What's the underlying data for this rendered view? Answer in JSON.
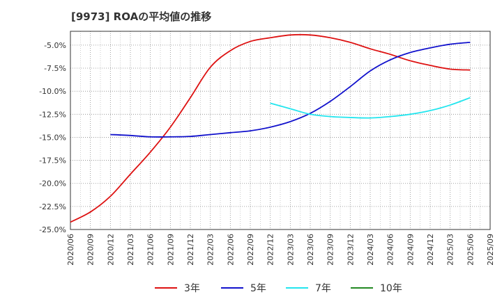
{
  "chart_data": {
    "type": "line",
    "title": "[9973]  ROAの平均値の推移",
    "xlabel": "",
    "ylabel": "",
    "ylim": [
      -25.0,
      -3.5
    ],
    "yticks": [
      -5.0,
      -7.5,
      -10.0,
      -12.5,
      -15.0,
      -17.5,
      -20.0,
      -22.5,
      -25.0
    ],
    "ytick_labels": [
      "-5.0%",
      "-7.5%",
      "-10.0%",
      "-12.5%",
      "-15.0%",
      "-17.5%",
      "-20.0%",
      "-22.5%",
      "-25.0%"
    ],
    "x_categories": [
      "2020/06",
      "2020/09",
      "2020/12",
      "2021/03",
      "2021/06",
      "2021/09",
      "2021/12",
      "2022/03",
      "2022/06",
      "2022/09",
      "2022/12",
      "2023/03",
      "2023/06",
      "2023/09",
      "2023/12",
      "2024/03",
      "2024/06",
      "2024/09",
      "2024/12",
      "2025/03",
      "2025/06",
      "2025/09"
    ],
    "grid": true,
    "legend_position": "bottom",
    "series": [
      {
        "name": "3年",
        "color": "#dd1111",
        "values": [
          -24.2,
          -23.1,
          -21.4,
          -19.0,
          -16.6,
          -13.9,
          -10.7,
          -7.4,
          -5.6,
          -4.6,
          -4.2,
          -3.9,
          -3.9,
          -4.2,
          -4.7,
          -5.4,
          -6.0,
          -6.7,
          -7.2,
          -7.6,
          -7.7,
          null
        ]
      },
      {
        "name": "5年",
        "color": "#1111cc",
        "values": [
          null,
          null,
          -14.7,
          -14.8,
          -14.95,
          -14.95,
          -14.9,
          -14.7,
          -14.5,
          -14.3,
          -13.9,
          -13.3,
          -12.4,
          -11.1,
          -9.5,
          -7.8,
          -6.6,
          -5.8,
          -5.3,
          -4.9,
          -4.7,
          null
        ]
      },
      {
        "name": "7年",
        "color": "#22e5ee",
        "values": [
          null,
          null,
          null,
          null,
          null,
          null,
          null,
          null,
          null,
          null,
          -11.3,
          -11.9,
          -12.5,
          -12.75,
          -12.85,
          -12.9,
          -12.75,
          -12.5,
          -12.1,
          -11.5,
          -10.7,
          null
        ]
      },
      {
        "name": "10年",
        "color": "#228822",
        "values": [
          null,
          null,
          null,
          null,
          null,
          null,
          null,
          null,
          null,
          null,
          null,
          null,
          null,
          null,
          null,
          null,
          null,
          null,
          null,
          null,
          null,
          null
        ]
      }
    ]
  }
}
